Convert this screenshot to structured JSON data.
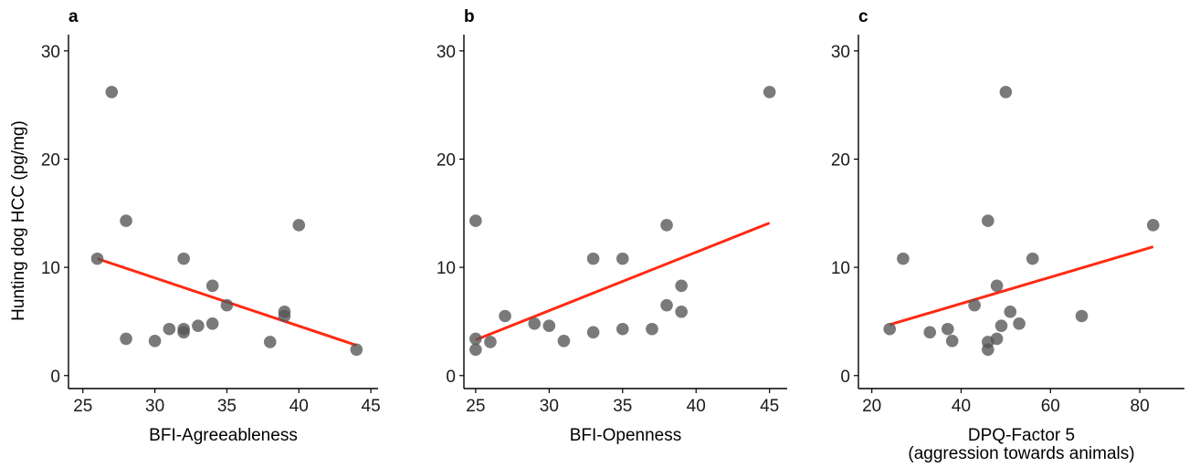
{
  "chart_data": [
    {
      "type": "scatter",
      "panel_label": "a",
      "xlabel": "BFI-Agreeableness",
      "ylabel": "Hunting dog HCC (pg/mg)",
      "xlim": [
        24,
        45.5
      ],
      "ylim": [
        -1.2,
        31.5
      ],
      "xticks": [
        25,
        30,
        35,
        40,
        45
      ],
      "yticks": [
        0,
        10,
        20,
        30
      ],
      "points": [
        {
          "x": 26,
          "y": 10.8
        },
        {
          "x": 27,
          "y": 26.2
        },
        {
          "x": 28,
          "y": 14.3
        },
        {
          "x": 28,
          "y": 3.4
        },
        {
          "x": 30,
          "y": 3.2
        },
        {
          "x": 31,
          "y": 4.3
        },
        {
          "x": 32,
          "y": 10.8
        },
        {
          "x": 32,
          "y": 4.3
        },
        {
          "x": 32,
          "y": 4.0
        },
        {
          "x": 33,
          "y": 4.6
        },
        {
          "x": 34,
          "y": 8.3
        },
        {
          "x": 34,
          "y": 4.8
        },
        {
          "x": 35,
          "y": 6.5
        },
        {
          "x": 38,
          "y": 3.1
        },
        {
          "x": 39,
          "y": 5.9
        },
        {
          "x": 39,
          "y": 5.5
        },
        {
          "x": 40,
          "y": 13.9
        },
        {
          "x": 44,
          "y": 2.4
        }
      ],
      "fit_line": {
        "x": [
          26,
          44
        ],
        "y": [
          10.8,
          2.8
        ],
        "color": "#ff2a12"
      }
    },
    {
      "type": "scatter",
      "panel_label": "b",
      "xlabel": "BFI-Openness",
      "ylabel": "",
      "xlim": [
        24.2,
        46.2
      ],
      "ylim": [
        -1.2,
        31.5
      ],
      "xticks": [
        25,
        30,
        35,
        40,
        45
      ],
      "yticks": [
        0,
        10,
        20,
        30
      ],
      "points": [
        {
          "x": 25,
          "y": 14.3
        },
        {
          "x": 25,
          "y": 3.4
        },
        {
          "x": 25,
          "y": 2.4
        },
        {
          "x": 26,
          "y": 3.1
        },
        {
          "x": 27,
          "y": 5.5
        },
        {
          "x": 29,
          "y": 4.8
        },
        {
          "x": 30,
          "y": 4.6
        },
        {
          "x": 31,
          "y": 3.2
        },
        {
          "x": 33,
          "y": 10.8
        },
        {
          "x": 33,
          "y": 4.0
        },
        {
          "x": 35,
          "y": 10.8
        },
        {
          "x": 35,
          "y": 4.3
        },
        {
          "x": 37,
          "y": 4.3
        },
        {
          "x": 38,
          "y": 13.9
        },
        {
          "x": 38,
          "y": 6.5
        },
        {
          "x": 39,
          "y": 8.3
        },
        {
          "x": 39,
          "y": 5.9
        },
        {
          "x": 45,
          "y": 26.2
        }
      ],
      "fit_line": {
        "x": [
          25,
          45
        ],
        "y": [
          3.3,
          14.1
        ],
        "color": "#ff2a12"
      }
    },
    {
      "type": "scatter",
      "panel_label": "c",
      "xlabel": "DPQ-Factor 5",
      "xlabel2": "(aggression towards animals)",
      "ylabel": "",
      "xlim": [
        17,
        90
      ],
      "ylim": [
        -1.2,
        31.5
      ],
      "xticks": [
        20,
        40,
        60,
        80
      ],
      "yticks": [
        0,
        10,
        20,
        30
      ],
      "points": [
        {
          "x": 24,
          "y": 4.3
        },
        {
          "x": 27,
          "y": 10.8
        },
        {
          "x": 33,
          "y": 4.0
        },
        {
          "x": 37,
          "y": 4.3
        },
        {
          "x": 38,
          "y": 3.2
        },
        {
          "x": 43,
          "y": 6.5
        },
        {
          "x": 46,
          "y": 14.3
        },
        {
          "x": 46,
          "y": 3.1
        },
        {
          "x": 46,
          "y": 2.4
        },
        {
          "x": 48,
          "y": 8.3
        },
        {
          "x": 48,
          "y": 3.4
        },
        {
          "x": 49,
          "y": 4.6
        },
        {
          "x": 50,
          "y": 26.2
        },
        {
          "x": 51,
          "y": 5.9
        },
        {
          "x": 53,
          "y": 4.8
        },
        {
          "x": 56,
          "y": 10.8
        },
        {
          "x": 67,
          "y": 5.5
        },
        {
          "x": 83,
          "y": 13.9
        }
      ],
      "fit_line": {
        "x": [
          24,
          83
        ],
        "y": [
          4.7,
          11.9
        ],
        "color": "#ff2a12"
      }
    }
  ]
}
